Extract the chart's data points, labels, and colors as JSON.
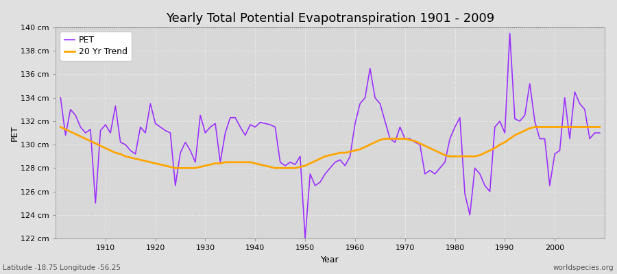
{
  "title": "Yearly Total Potential Evapotranspiration 1901 - 2009",
  "xlabel": "Year",
  "ylabel": "PET",
  "bottom_left_label": "Latitude -18.75 Longitude -56.25",
  "bottom_right_label": "worldspecies.org",
  "years": [
    1901,
    1902,
    1903,
    1904,
    1905,
    1906,
    1907,
    1908,
    1909,
    1910,
    1911,
    1912,
    1913,
    1914,
    1915,
    1916,
    1917,
    1918,
    1919,
    1920,
    1921,
    1922,
    1923,
    1924,
    1925,
    1926,
    1927,
    1928,
    1929,
    1930,
    1931,
    1932,
    1933,
    1934,
    1935,
    1936,
    1937,
    1938,
    1939,
    1940,
    1941,
    1942,
    1943,
    1944,
    1945,
    1946,
    1947,
    1948,
    1949,
    1950,
    1951,
    1952,
    1953,
    1954,
    1955,
    1956,
    1957,
    1958,
    1959,
    1960,
    1961,
    1962,
    1963,
    1964,
    1965,
    1966,
    1967,
    1968,
    1969,
    1970,
    1971,
    1972,
    1973,
    1974,
    1975,
    1976,
    1977,
    1978,
    1979,
    1980,
    1981,
    1982,
    1983,
    1984,
    1985,
    1986,
    1987,
    1988,
    1989,
    1990,
    1991,
    1992,
    1993,
    1994,
    1995,
    1996,
    1997,
    1998,
    1999,
    2000,
    2001,
    2002,
    2003,
    2004,
    2005,
    2006,
    2007,
    2008,
    2009
  ],
  "pet": [
    134.0,
    130.8,
    133.0,
    132.5,
    131.5,
    131.0,
    131.3,
    125.0,
    131.2,
    131.7,
    131.0,
    133.3,
    130.2,
    130.0,
    129.5,
    129.2,
    131.5,
    131.0,
    133.5,
    131.8,
    131.5,
    131.2,
    131.0,
    126.5,
    129.3,
    130.2,
    129.5,
    128.5,
    132.5,
    131.0,
    131.5,
    131.8,
    128.5,
    131.0,
    132.3,
    132.3,
    131.5,
    130.8,
    131.7,
    131.5,
    131.9,
    131.8,
    131.7,
    131.5,
    128.5,
    128.2,
    128.5,
    128.3,
    129.0,
    122.0,
    127.5,
    126.5,
    126.8,
    127.5,
    128.0,
    128.5,
    128.7,
    128.2,
    129.0,
    131.8,
    133.5,
    134.0,
    136.5,
    134.0,
    133.5,
    132.0,
    130.5,
    130.2,
    131.5,
    130.5,
    130.5,
    130.2,
    130.0,
    127.5,
    127.8,
    127.5,
    128.0,
    128.5,
    130.5,
    131.5,
    132.3,
    125.8,
    124.0,
    128.0,
    127.5,
    126.5,
    126.0,
    131.5,
    132.0,
    131.0,
    139.5,
    132.2,
    132.0,
    132.5,
    135.2,
    132.0,
    130.5,
    130.5,
    126.5,
    129.2,
    129.5,
    134.0,
    130.5,
    134.5,
    133.5,
    133.0,
    130.5,
    131.0,
    131.0
  ],
  "trend": [
    131.5,
    131.3,
    131.1,
    130.9,
    130.7,
    130.5,
    130.3,
    130.1,
    129.9,
    129.7,
    129.5,
    129.3,
    129.2,
    129.0,
    128.9,
    128.8,
    128.7,
    128.6,
    128.5,
    128.4,
    128.3,
    128.2,
    128.1,
    128.0,
    128.0,
    128.0,
    128.0,
    128.0,
    128.1,
    128.2,
    128.3,
    128.4,
    128.4,
    128.5,
    128.5,
    128.5,
    128.5,
    128.5,
    128.5,
    128.4,
    128.3,
    128.2,
    128.1,
    128.0,
    128.0,
    128.0,
    128.0,
    128.0,
    128.1,
    128.2,
    128.4,
    128.6,
    128.8,
    129.0,
    129.1,
    129.2,
    129.3,
    129.3,
    129.4,
    129.5,
    129.6,
    129.8,
    130.0,
    130.2,
    130.4,
    130.5,
    130.5,
    130.5,
    130.5,
    130.5,
    130.4,
    130.3,
    130.1,
    129.9,
    129.7,
    129.5,
    129.3,
    129.1,
    129.0,
    129.0,
    129.0,
    129.0,
    129.0,
    129.0,
    129.1,
    129.3,
    129.5,
    129.7,
    130.0,
    130.2,
    130.5,
    130.8,
    131.0,
    131.2,
    131.4,
    131.5,
    131.5,
    131.5,
    131.5,
    131.5,
    131.5,
    131.5,
    131.5,
    131.5,
    131.5,
    131.5,
    131.5,
    131.5,
    131.5
  ],
  "pet_color": "#9B30FF",
  "trend_color": "#FFA500",
  "background_color": "#E0E0E0",
  "plot_bg_color": "#D8D8D8",
  "ylim": [
    122,
    140
  ],
  "xlim_min": 1900,
  "xlim_max": 2010,
  "yticks": [
    122,
    124,
    126,
    128,
    130,
    132,
    134,
    136,
    138,
    140
  ],
  "xticks": [
    1910,
    1920,
    1930,
    1940,
    1950,
    1960,
    1970,
    1980,
    1990,
    2000
  ],
  "title_fontsize": 13,
  "label_fontsize": 9,
  "tick_fontsize": 8
}
